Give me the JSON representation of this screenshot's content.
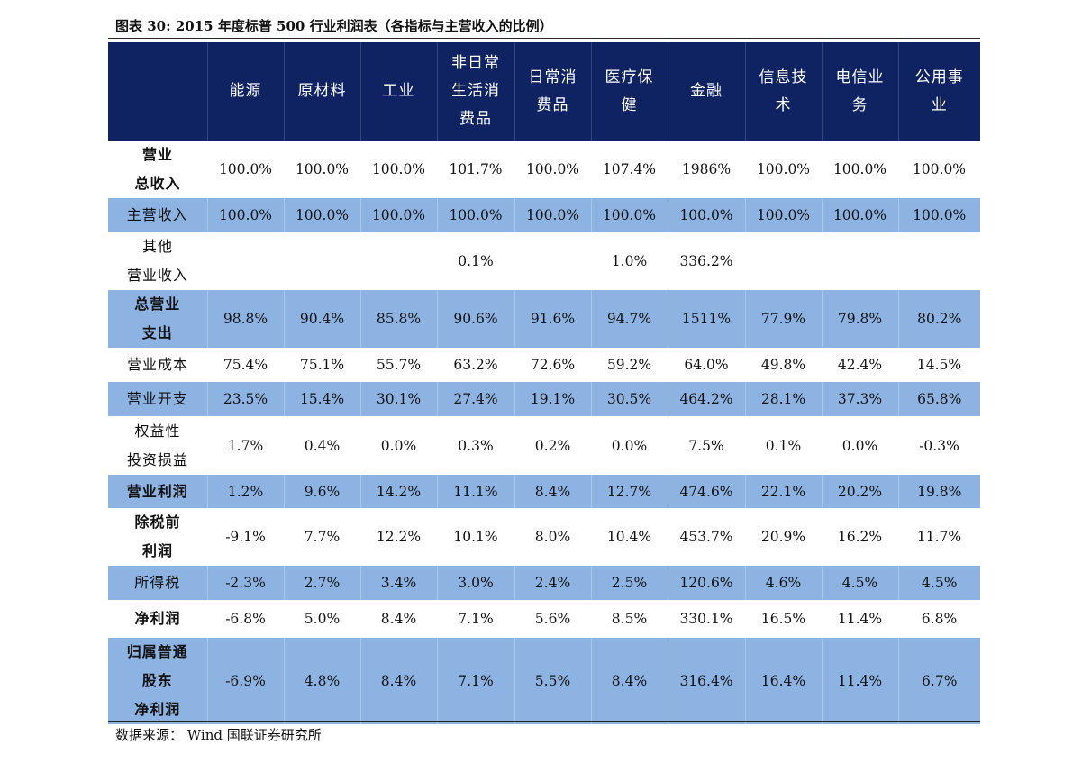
{
  "title": "图表 30:  2015 年度标普 500 行业利润表（各指标与主营收入的比例）",
  "columns": [
    {
      "lines": [
        ""
      ]
    },
    {
      "lines": [
        "能源"
      ]
    },
    {
      "lines": [
        "原材料"
      ]
    },
    {
      "lines": [
        "工业"
      ]
    },
    {
      "lines": [
        "非日常",
        "生活消",
        "费品"
      ]
    },
    {
      "lines": [
        "日常消",
        "费品"
      ]
    },
    {
      "lines": [
        "医疗保",
        "健"
      ]
    },
    {
      "lines": [
        "金融"
      ]
    },
    {
      "lines": [
        "信息技",
        "术"
      ]
    },
    {
      "lines": [
        "电信业",
        "务"
      ]
    },
    {
      "lines": [
        "公用事",
        "业"
      ]
    }
  ],
  "rows": [
    {
      "label": [
        "营业",
        "总收入"
      ],
      "bold": true,
      "style": "white",
      "height": 64,
      "values": [
        "100.0%",
        "100.0%",
        "100.0%",
        "101.7%",
        "100.0%",
        "107.4%",
        "1986%",
        "100.0%",
        "100.0%",
        "100.0%"
      ]
    },
    {
      "label": [
        "主营收入"
      ],
      "bold": false,
      "style": "blue",
      "height": 37,
      "values": [
        "100.0%",
        "100.0%",
        "100.0%",
        "100.0%",
        "100.0%",
        "100.0%",
        "100.0%",
        "100.0%",
        "100.0%",
        "100.0%"
      ]
    },
    {
      "label": [
        "其他",
        "营业收入"
      ],
      "bold": false,
      "style": "white",
      "height": 65,
      "values": [
        "",
        "",
        "",
        "0.1%",
        "",
        "1.0%",
        "336.2%",
        "",
        "",
        ""
      ]
    },
    {
      "label": [
        "总营业",
        "支出"
      ],
      "bold": true,
      "style": "blue",
      "height": 64,
      "values": [
        "98.8%",
        "90.4%",
        "85.8%",
        "90.6%",
        "91.6%",
        "94.7%",
        "1511%",
        "77.9%",
        "79.8%",
        "80.2%"
      ]
    },
    {
      "label": [
        "营业成本"
      ],
      "bold": false,
      "style": "white",
      "height": 38,
      "values": [
        "75.4%",
        "75.1%",
        "55.7%",
        "63.2%",
        "72.6%",
        "59.2%",
        "64.0%",
        "49.8%",
        "42.4%",
        "14.5%"
      ]
    },
    {
      "label": [
        "营业开支"
      ],
      "bold": false,
      "style": "blue",
      "height": 38,
      "values": [
        "23.5%",
        "15.4%",
        "30.1%",
        "27.4%",
        "19.1%",
        "30.5%",
        "464.2%",
        "28.1%",
        "37.3%",
        "65.8%"
      ]
    },
    {
      "label": [
        "权益性",
        "投资损益"
      ],
      "bold": false,
      "style": "white",
      "height": 65,
      "values": [
        "1.7%",
        "0.4%",
        "0.0%",
        "0.3%",
        "0.2%",
        "0.0%",
        "7.5%",
        "0.1%",
        "0.0%",
        "-0.3%"
      ]
    },
    {
      "label": [
        "营业利润"
      ],
      "bold": true,
      "style": "blue",
      "height": 37,
      "values": [
        "1.2%",
        "9.6%",
        "14.2%",
        "11.1%",
        "8.4%",
        "12.7%",
        "474.6%",
        "22.1%",
        "20.2%",
        "19.8%"
      ]
    },
    {
      "label": [
        "除税前",
        "利润"
      ],
      "bold": true,
      "style": "white",
      "height": 64,
      "values": [
        "-9.1%",
        "7.7%",
        "12.2%",
        "10.1%",
        "8.0%",
        "10.4%",
        "453.7%",
        "20.9%",
        "16.2%",
        "11.7%"
      ]
    },
    {
      "label": [
        "所得税"
      ],
      "bold": false,
      "style": "blue",
      "height": 38,
      "values": [
        "-2.3%",
        "2.7%",
        "3.4%",
        "3.0%",
        "2.4%",
        "2.5%",
        "120.6%",
        "4.6%",
        "4.5%",
        "4.5%"
      ]
    },
    {
      "label": [
        "净利润"
      ],
      "bold": true,
      "style": "white",
      "height": 42,
      "values": [
        "-6.8%",
        "5.0%",
        "8.4%",
        "7.1%",
        "5.6%",
        "8.5%",
        "330.1%",
        "16.5%",
        "11.4%",
        "6.8%"
      ]
    },
    {
      "label": [
        "归属普通",
        "股东",
        "净利润"
      ],
      "bold": true,
      "style": "blue",
      "height": 96,
      "values": [
        "-6.9%",
        "4.8%",
        "8.4%",
        "7.1%",
        "5.5%",
        "8.4%",
        "316.4%",
        "16.4%",
        "11.4%",
        "6.7%"
      ]
    }
  ],
  "source": "数据来源： Wind  国联证券研究所"
}
